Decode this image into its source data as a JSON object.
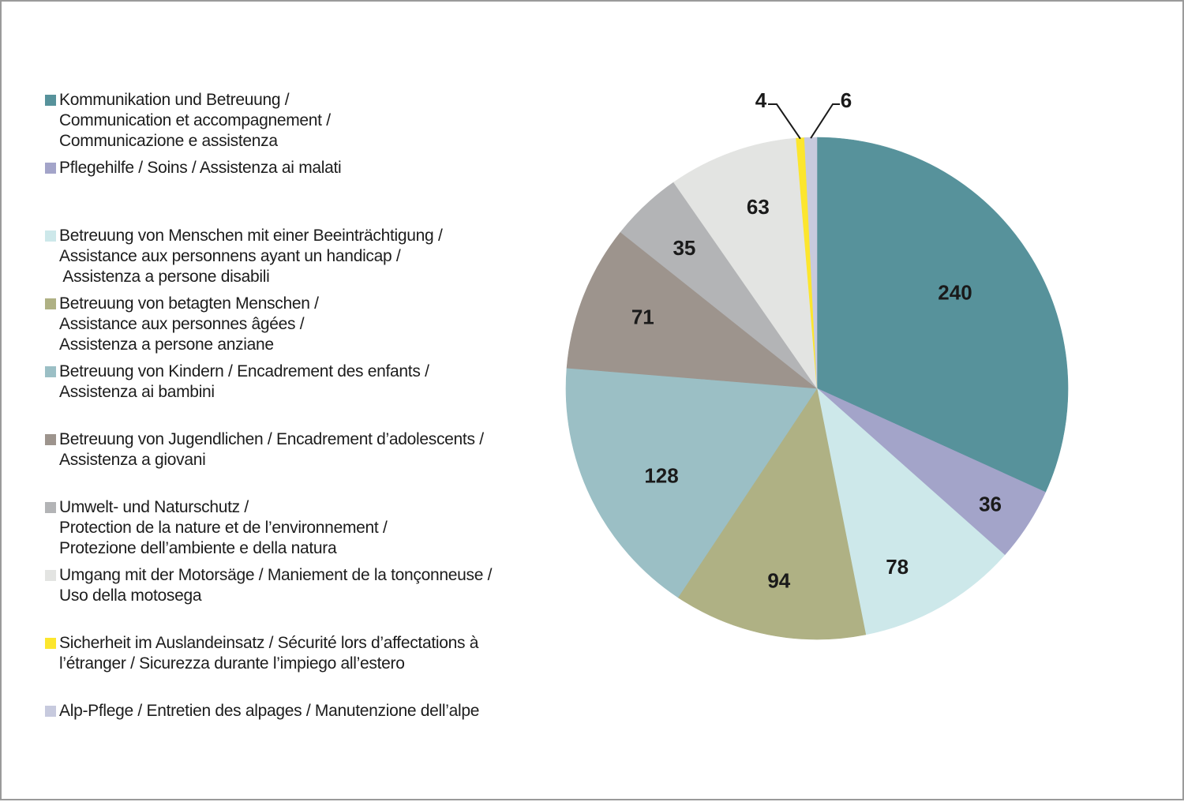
{
  "page": {
    "background": "#ffffff",
    "border_color": "#9a9a9a",
    "text_color": "#1c1c1c"
  },
  "chart_data": {
    "type": "pie",
    "title": "",
    "total": 755,
    "legend_position": "left",
    "start_angle_deg": 0,
    "direction": "clockwise",
    "series": [
      {
        "id": "kommunikation-und-betreuung",
        "value": 240,
        "color": "#57929b",
        "legend_lines": [
          "Kommunikation und Betreuung /",
          "Communication et accompagnement /",
          "Communicazione e assistenza"
        ]
      },
      {
        "id": "pflegehilfe",
        "value": 36,
        "color": "#a3a4c9",
        "legend_lines": [
          "Pflegehilfe / Soins / Assistenza ai malati"
        ]
      },
      {
        "id": "betreuung-menschen-mit-beeintraechtigung",
        "value": 78,
        "color": "#cde8ea",
        "legend_lines": [
          "Betreuung von Menschen mit einer Beeinträchtigung /",
          "Assistance aux personnens ayant un handicap /",
          " Assistenza a persone disabili"
        ]
      },
      {
        "id": "betreuung-betagte-menschen",
        "value": 94,
        "color": "#afb184",
        "legend_lines": [
          "Betreuung von betagten Menschen /",
          "Assistance aux personnes âgées /",
          "Assistenza a persone anziane"
        ]
      },
      {
        "id": "betreuung-kinder",
        "value": 128,
        "color": "#9bbfc5",
        "legend_lines": [
          "Betreuung von Kindern / Encadrement des enfants /",
          "Assistenza ai bambini"
        ]
      },
      {
        "id": "betreuung-jugendliche",
        "value": 71,
        "color": "#9d948d",
        "legend_lines": [
          "Betreuung von Jugendlichen / Encadrement d’adolescents /",
          "Assistenza a giovani"
        ]
      },
      {
        "id": "umwelt-naturschutz",
        "value": 35,
        "color": "#b3b4b6",
        "legend_lines": [
          "Umwelt- und Naturschutz /",
          "Protection de la nature et de l’environnement /",
          "Protezione dell’ambiente e della natura"
        ]
      },
      {
        "id": "umgang-motorsaege",
        "value": 63,
        "color": "#e3e4e2",
        "legend_lines": [
          "Umgang mit der Motorsäge / Maniement de la tonçonneuse /",
          "Uso della motosega"
        ]
      },
      {
        "id": "sicherheit-auslandeinsatz",
        "value": 4,
        "color": "#fce62e",
        "legend_lines": [
          "Sicherheit im Auslandeinsatz / Sécurité lors d’affectations à",
          "l’étranger / Sicurezza durante l’impiego all’estero"
        ]
      },
      {
        "id": "alp-pflege",
        "value": 6,
        "color": "#c7cade",
        "legend_lines": [
          "Alp-Pflege / Entretien des alpages / Manutenzione dell’alpe"
        ]
      }
    ]
  }
}
